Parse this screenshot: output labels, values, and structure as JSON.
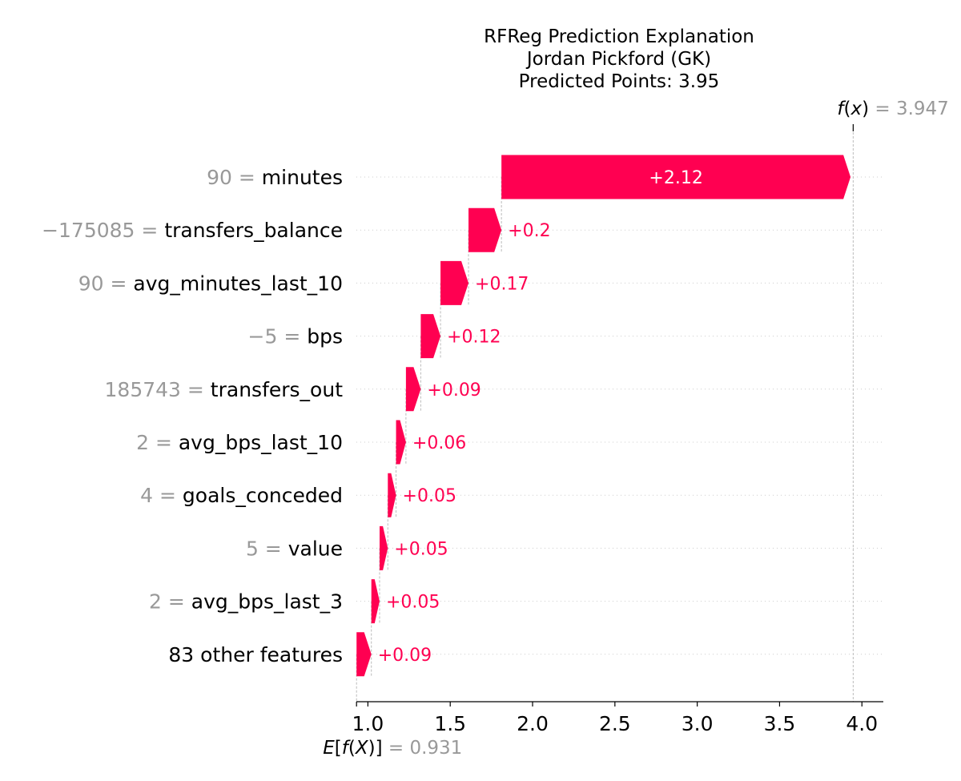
{
  "chart_data": {
    "type": "bar",
    "title_lines": [
      "RFReg Prediction Explanation",
      "Jordan Pickford (GK)",
      "Predicted Points: 3.95"
    ],
    "fx": {
      "value": 3.947,
      "value_label": "3.947"
    },
    "efx": {
      "value": 0.931,
      "value_label": "0.931"
    },
    "xlim": [
      0.93,
      4.13
    ],
    "xticks": [
      1.0,
      1.5,
      2.0,
      2.5,
      3.0,
      3.5,
      4.0
    ],
    "xtick_labels": [
      "1.0",
      "1.5",
      "2.0",
      "2.5",
      "3.0",
      "3.5",
      "4.0"
    ],
    "features": [
      {
        "value_text": "90",
        "name": "minutes",
        "contribution": 2.12,
        "label": "+2.12"
      },
      {
        "value_text": "−175085",
        "name": "transfers_balance",
        "contribution": 0.2,
        "label": "+0.2"
      },
      {
        "value_text": "90",
        "name": "avg_minutes_last_10",
        "contribution": 0.17,
        "label": "+0.17"
      },
      {
        "value_text": "−5",
        "name": "bps",
        "contribution": 0.12,
        "label": "+0.12"
      },
      {
        "value_text": "185743",
        "name": "transfers_out",
        "contribution": 0.09,
        "label": "+0.09"
      },
      {
        "value_text": "2",
        "name": "avg_bps_last_10",
        "contribution": 0.06,
        "label": "+0.06"
      },
      {
        "value_text": "4",
        "name": "goals_conceded",
        "contribution": 0.05,
        "label": "+0.05"
      },
      {
        "value_text": "5",
        "name": "value",
        "contribution": 0.05,
        "label": "+0.05"
      },
      {
        "value_text": "2",
        "name": "avg_bps_last_3",
        "contribution": 0.05,
        "label": "+0.05"
      },
      {
        "value_text": "",
        "name": "83 other features",
        "contribution": 0.09,
        "label": "+0.09"
      }
    ],
    "colors": {
      "positive": "#ff0051",
      "muted": "#999999",
      "text": "#000000"
    },
    "grid": "dotted-rows"
  }
}
